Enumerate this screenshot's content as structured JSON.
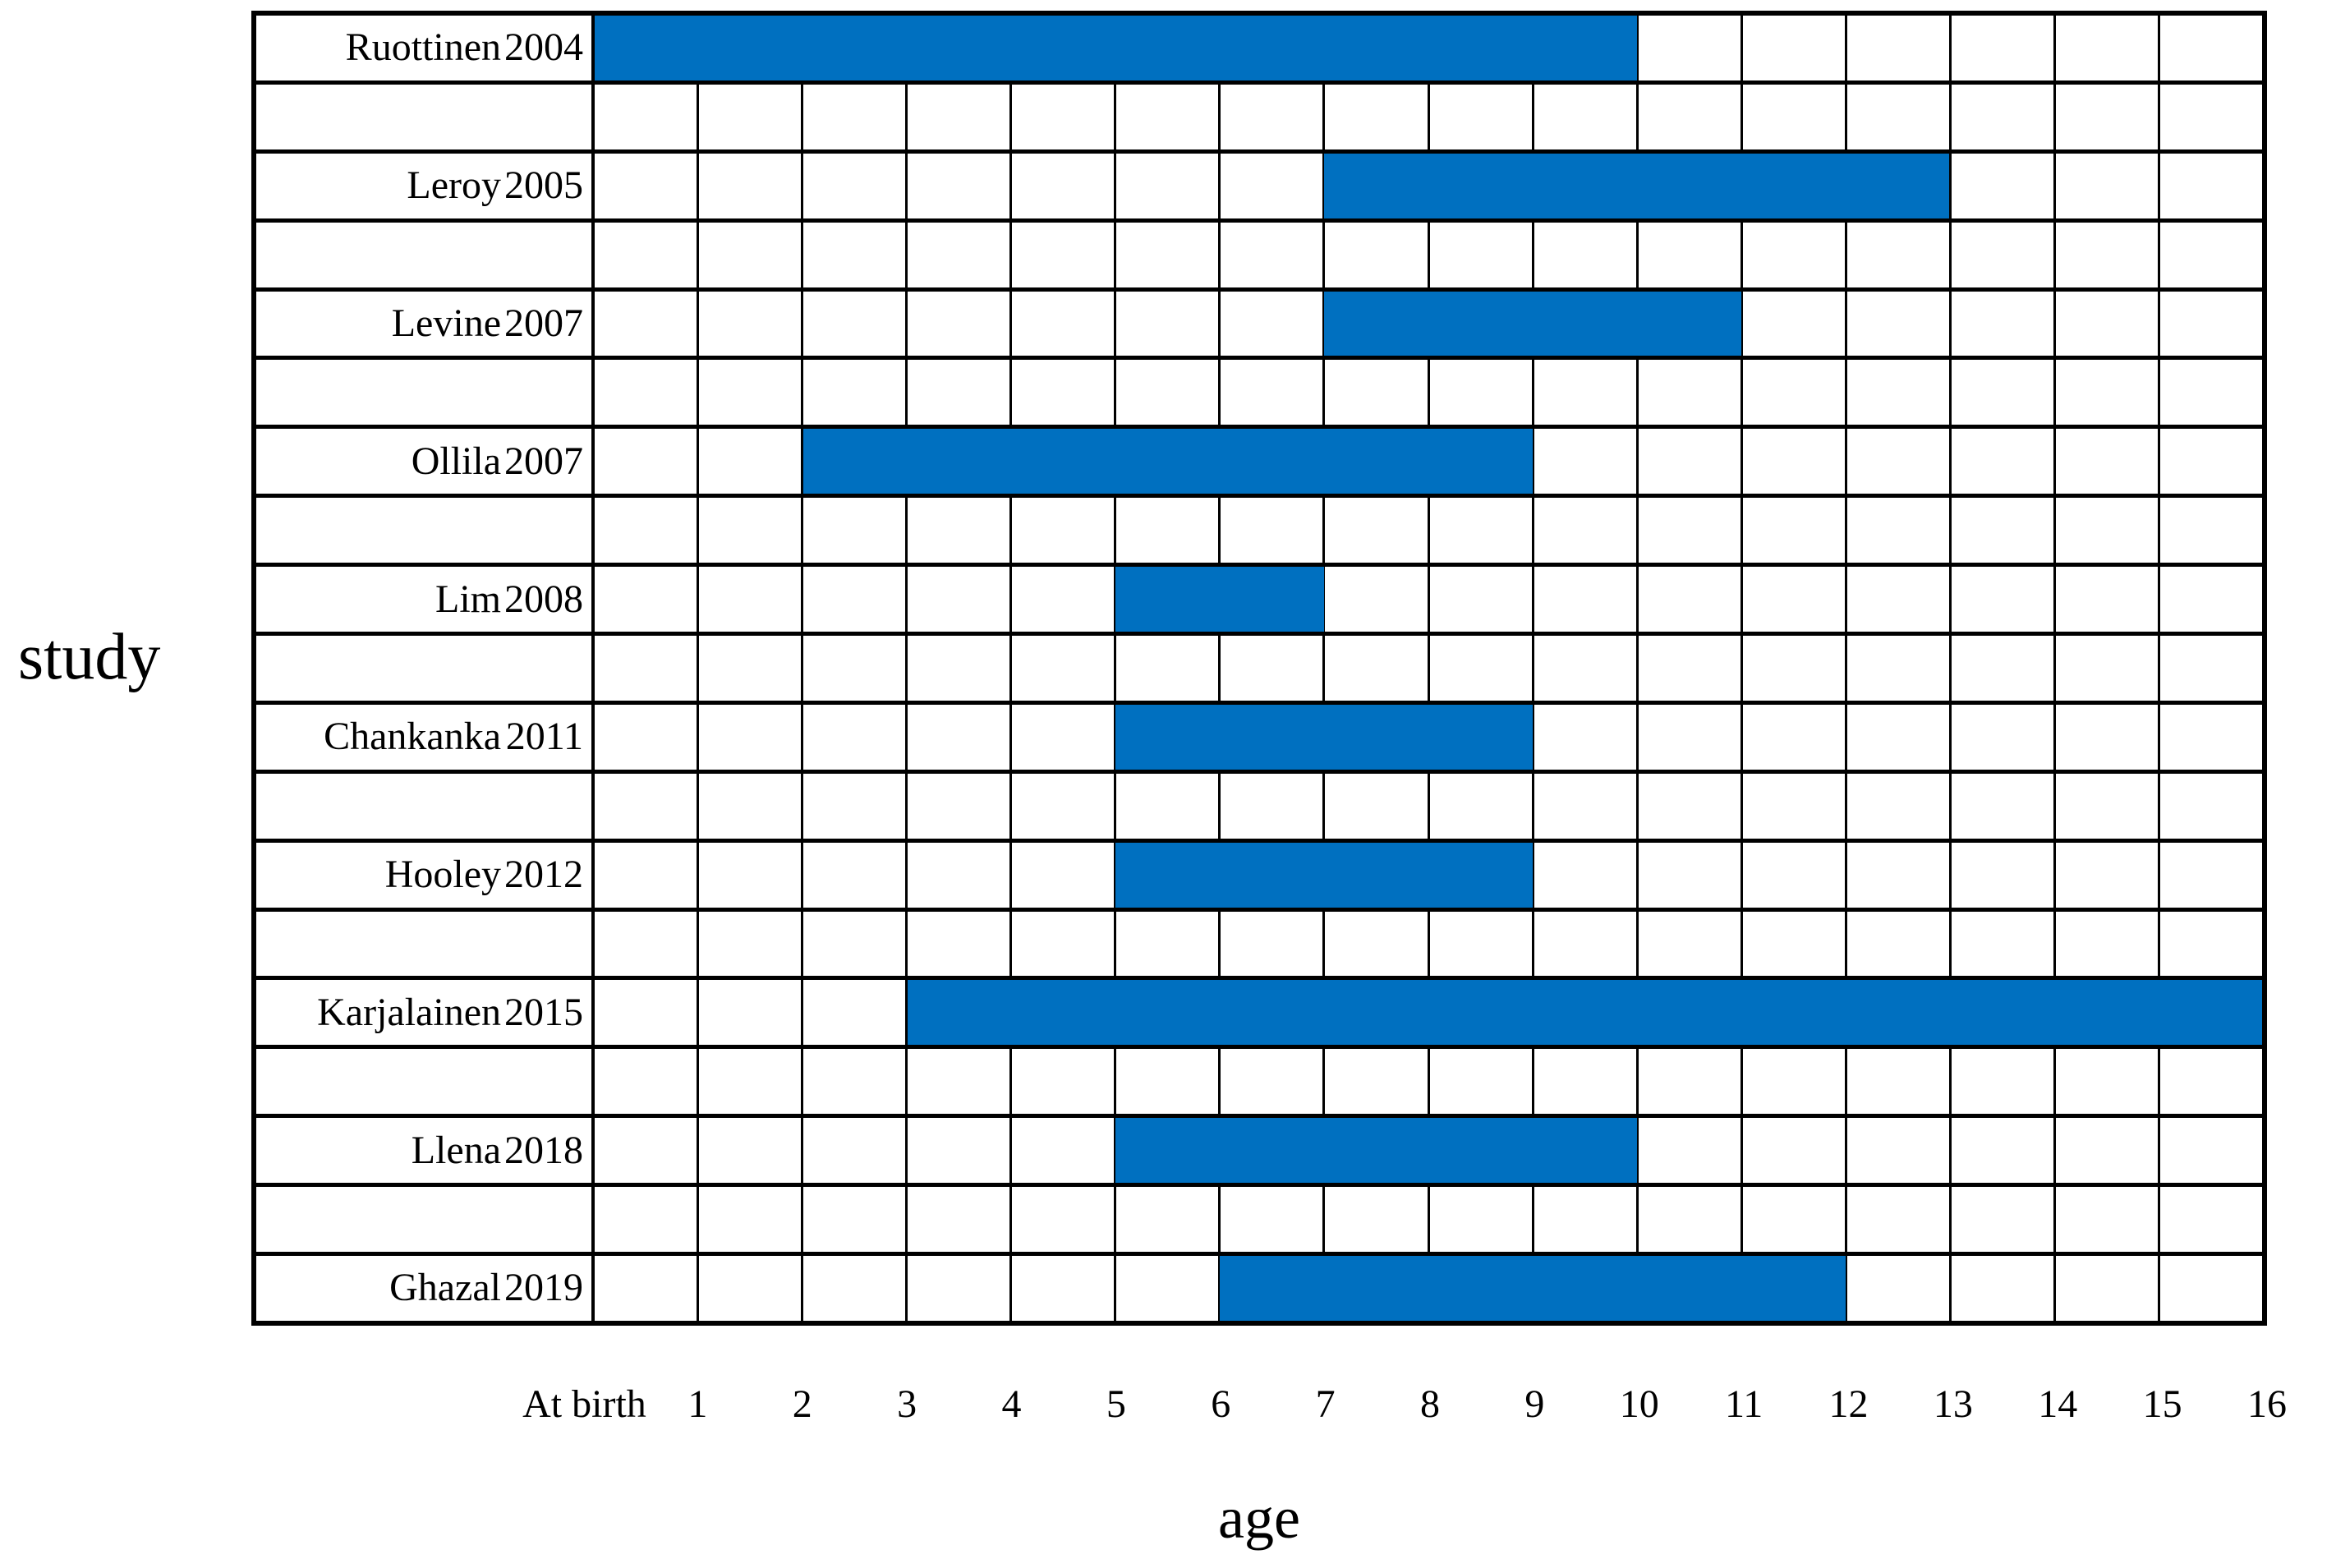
{
  "figure": {
    "y_axis_title": "study",
    "x_axis_title": "age",
    "bar_color": "#0070C0",
    "grid_line_color": "#000000",
    "background_color": "#ffffff"
  },
  "chart_data": {
    "type": "bar",
    "subtype": "horizontal-range-gantt",
    "title": "",
    "xlabel": "age",
    "ylabel": "study",
    "xlim": [
      0,
      16
    ],
    "grid": true,
    "legend": false,
    "x_tick_labels": [
      "At birth",
      "1",
      "2",
      "3",
      "4",
      "5",
      "6",
      "7",
      "8",
      "9",
      "10",
      "11",
      "12",
      "13",
      "14",
      "15",
      "16"
    ],
    "bar_color": "#0070C0",
    "studies": [
      {
        "label": "Ruottinen",
        "year": "2004",
        "age_start": 0,
        "age_end": 10
      },
      {
        "label": "Leroy",
        "year": "2005",
        "age_start": 7,
        "age_end": 13
      },
      {
        "label": "Levine",
        "year": "2007",
        "age_start": 7,
        "age_end": 11
      },
      {
        "label": "Ollila",
        "year": "2007",
        "age_start": 2,
        "age_end": 9
      },
      {
        "label": "Lim",
        "year": "2008",
        "age_start": 5,
        "age_end": 7
      },
      {
        "label": "Chankanka",
        "year": "2011",
        "age_start": 5,
        "age_end": 9
      },
      {
        "label": "Hooley",
        "year": "2012",
        "age_start": 5,
        "age_end": 9
      },
      {
        "label": "Karjalainen",
        "year": "2015",
        "age_start": 3,
        "age_end": 16
      },
      {
        "label": "Llena",
        "year": "2018",
        "age_start": 5,
        "age_end": 10
      },
      {
        "label": "Ghazal",
        "year": "2019",
        "age_start": 6,
        "age_end": 12
      }
    ]
  }
}
